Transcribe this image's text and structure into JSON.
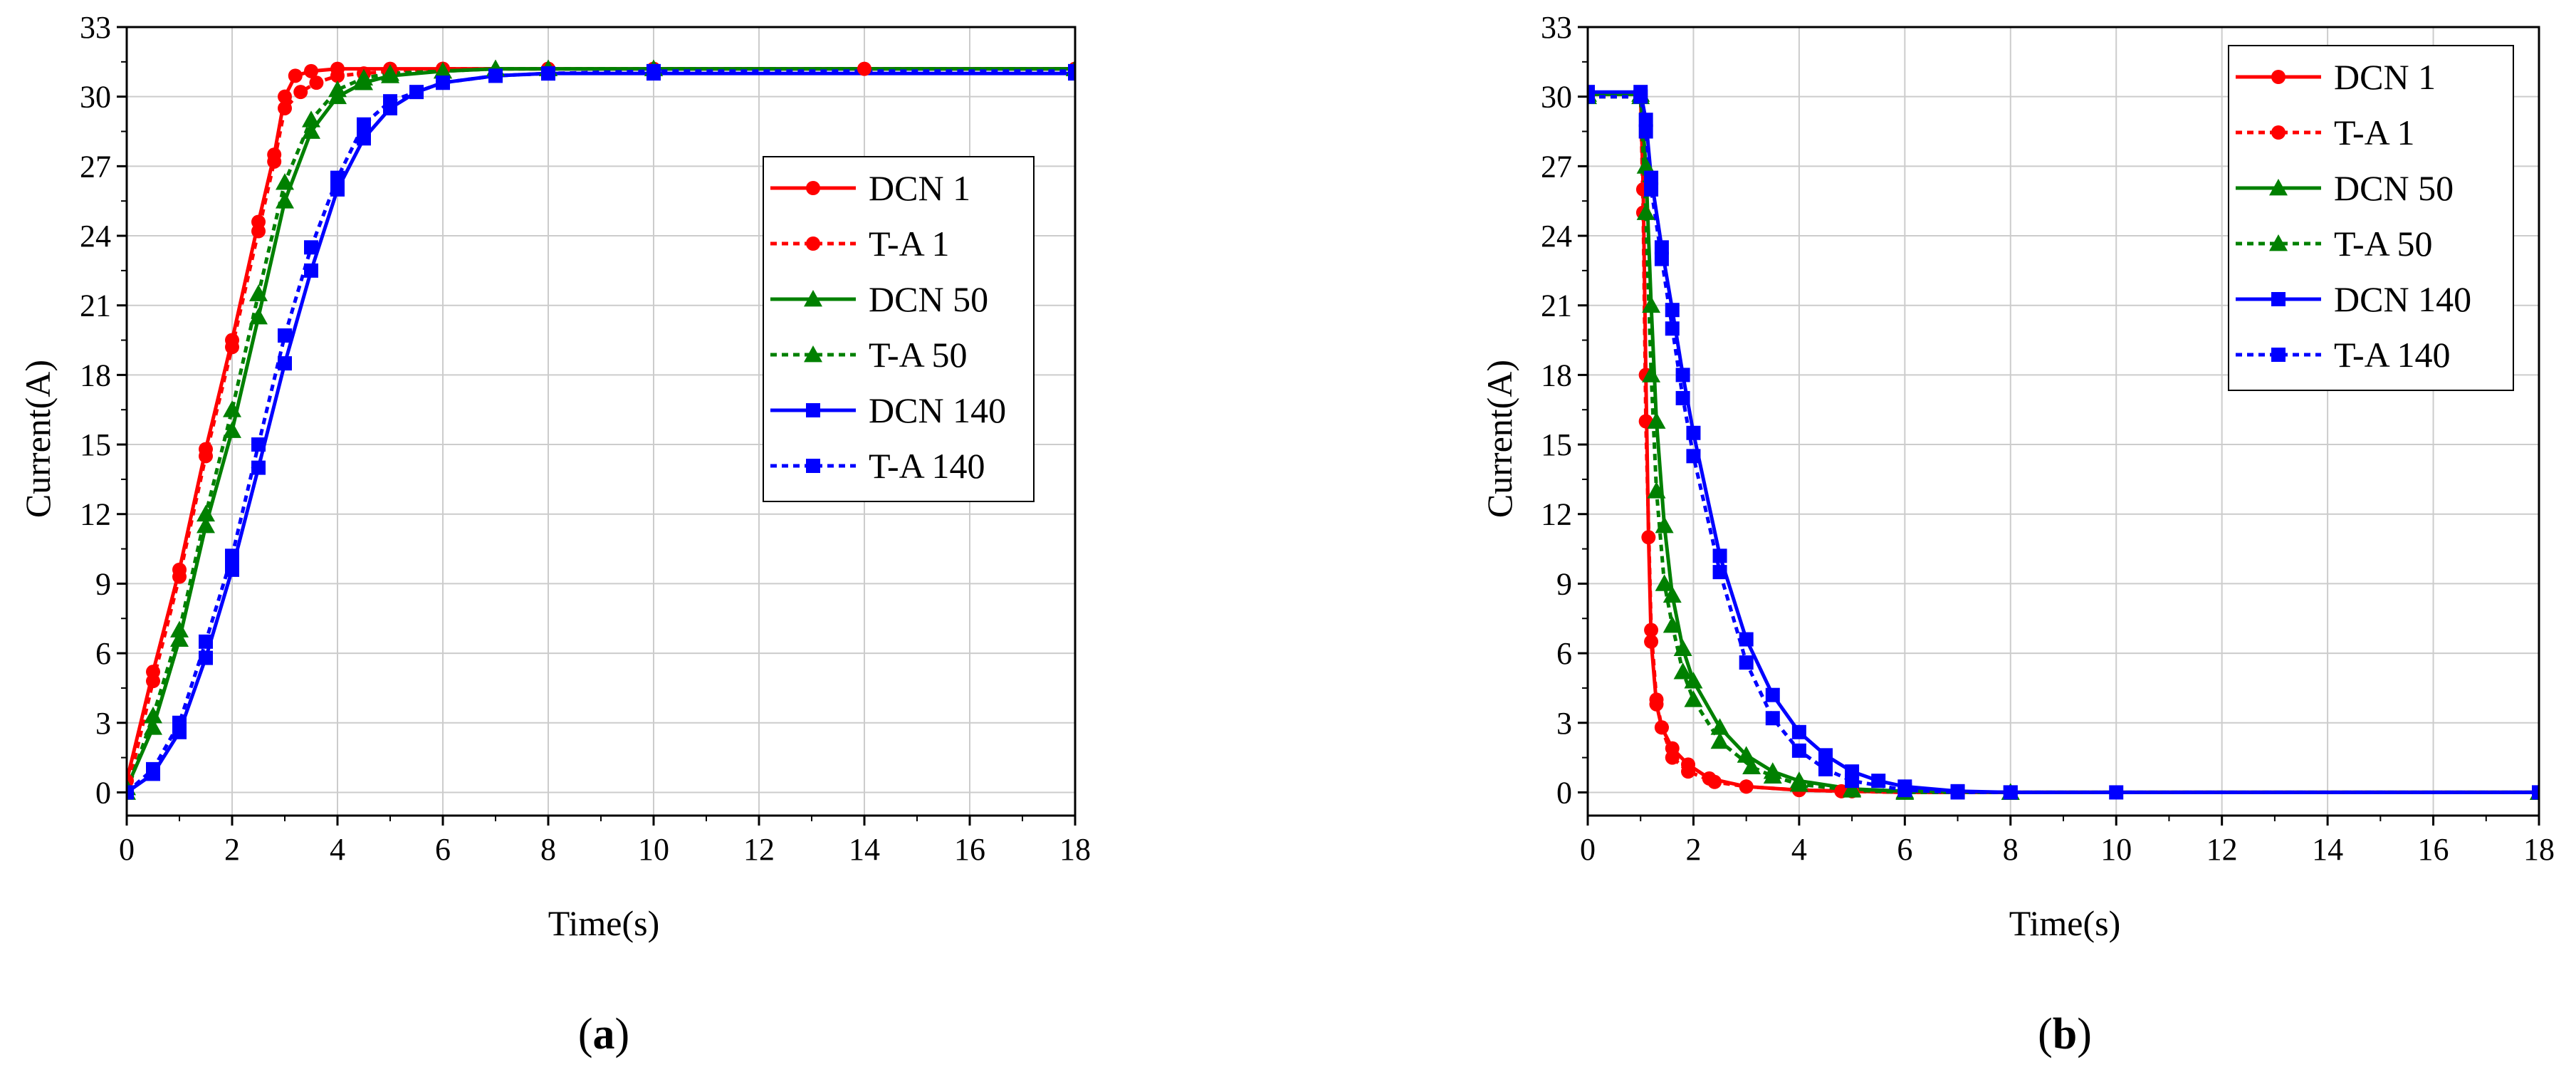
{
  "figure_labels": [
    {
      "open": "(",
      "letter": "a",
      "close": ")"
    },
    {
      "open": "(",
      "letter": "b",
      "close": ")"
    }
  ],
  "colors": {
    "red": "#ff0000",
    "green": "#008000",
    "blue": "#0000ff",
    "grid": "#cccccc",
    "axis": "#000000"
  },
  "chart_data": [
    {
      "type": "line",
      "title": "",
      "xlabel": "Time(s)",
      "ylabel": "Current(A)",
      "xlim": [
        0,
        18
      ],
      "ylim": [
        -1,
        33
      ],
      "xticks": [
        0,
        2,
        4,
        6,
        8,
        10,
        12,
        14,
        16,
        18
      ],
      "yticks": [
        0,
        3,
        6,
        9,
        12,
        15,
        18,
        21,
        24,
        27,
        30,
        33
      ],
      "grid": true,
      "legend_position": "right",
      "series": [
        {
          "name": "DCN 1",
          "color": "#ff0000",
          "dash": "solid",
          "marker": "circle",
          "x": [
            0,
            0.5,
            1,
            1.5,
            2,
            2.5,
            2.8,
            3.0,
            3.2,
            3.5,
            4,
            5,
            6,
            8,
            10,
            14,
            18
          ],
          "y": [
            0.5,
            5.2,
            9.6,
            14.8,
            19.5,
            24.6,
            27.5,
            30.0,
            30.9,
            31.1,
            31.2,
            31.2,
            31.2,
            31.2,
            31.2,
            31.2,
            31.2
          ]
        },
        {
          "name": "T-A 1",
          "color": "#ff0000",
          "dash": "dotted",
          "marker": "circle",
          "x": [
            0,
            0.5,
            1,
            1.5,
            2,
            2.5,
            2.8,
            3.0,
            3.3,
            3.6,
            4,
            4.5,
            5,
            6,
            8,
            18
          ],
          "y": [
            0.0,
            4.8,
            9.3,
            14.5,
            19.2,
            24.2,
            27.2,
            29.5,
            30.2,
            30.6,
            30.9,
            31.0,
            31.1,
            31.2,
            31.2,
            31.2
          ]
        },
        {
          "name": "DCN 50",
          "color": "#008000",
          "dash": "solid",
          "marker": "triangle",
          "x": [
            0,
            0.5,
            1,
            1.5,
            2,
            2.5,
            3,
            3.5,
            4,
            4.5,
            5,
            6,
            7,
            8,
            10,
            18
          ],
          "y": [
            0.2,
            2.8,
            6.6,
            11.5,
            15.6,
            20.5,
            25.5,
            28.5,
            30.0,
            30.6,
            30.9,
            31.1,
            31.2,
            31.2,
            31.2,
            31.2
          ]
        },
        {
          "name": "T-A 50",
          "color": "#008000",
          "dash": "dotted",
          "marker": "triangle",
          "x": [
            0,
            0.5,
            1,
            1.5,
            2,
            2.5,
            3,
            3.5,
            4,
            4.5,
            5,
            6,
            7,
            8,
            10,
            18
          ],
          "y": [
            0.0,
            3.3,
            7.0,
            12.0,
            16.5,
            21.5,
            26.3,
            29.0,
            30.3,
            30.8,
            31.0,
            31.1,
            31.2,
            31.2,
            31.2,
            31.2
          ]
        },
        {
          "name": "DCN 140",
          "color": "#0000ff",
          "dash": "solid",
          "marker": "square",
          "x": [
            0,
            0.5,
            1,
            1.5,
            2,
            2.5,
            3,
            3.5,
            4,
            4.5,
            5,
            5.5,
            6,
            7,
            8,
            10,
            18
          ],
          "y": [
            0.0,
            0.8,
            2.6,
            5.8,
            9.6,
            14.0,
            18.5,
            22.5,
            26.0,
            28.2,
            29.5,
            30.2,
            30.6,
            30.9,
            31.0,
            31.0,
            31.0
          ]
        },
        {
          "name": "T-A 140",
          "color": "#0000ff",
          "dash": "dotted",
          "marker": "square",
          "x": [
            0,
            0.5,
            1,
            1.5,
            2,
            2.5,
            3,
            3.5,
            4,
            4.5,
            5,
            6,
            7,
            8,
            10,
            18
          ],
          "y": [
            0.0,
            1.0,
            3.0,
            6.5,
            10.2,
            15.0,
            19.7,
            23.5,
            26.5,
            28.8,
            29.8,
            30.6,
            30.9,
            31.0,
            31.1,
            31.1
          ]
        }
      ]
    },
    {
      "type": "line",
      "title": "",
      "xlabel": "Time(s)",
      "ylabel": "Current(A)",
      "xlim": [
        0,
        18
      ],
      "ylim": [
        -1,
        33
      ],
      "xticks": [
        0,
        2,
        4,
        6,
        8,
        10,
        12,
        14,
        16,
        18
      ],
      "yticks": [
        0,
        3,
        6,
        9,
        12,
        15,
        18,
        21,
        24,
        27,
        30,
        33
      ],
      "grid": true,
      "legend_position": "top-right",
      "series": [
        {
          "name": "DCN 1",
          "color": "#ff0000",
          "dash": "solid",
          "marker": "circle",
          "x": [
            0,
            1.0,
            1.05,
            1.1,
            1.15,
            1.2,
            1.3,
            1.4,
            1.6,
            1.9,
            2.3,
            3.0,
            4.0,
            5.0,
            6.0,
            8.0,
            18
          ],
          "y": [
            30.1,
            30.1,
            26.0,
            18.0,
            11.0,
            6.5,
            3.8,
            2.8,
            1.9,
            1.2,
            0.6,
            0.25,
            0.1,
            0.05,
            0.0,
            0.0,
            0.0
          ]
        },
        {
          "name": "T-A 1",
          "color": "#ff0000",
          "dash": "dotted",
          "marker": "circle",
          "x": [
            0,
            1.0,
            1.05,
            1.1,
            1.2,
            1.3,
            1.4,
            1.6,
            1.9,
            2.4,
            3.0,
            4.0,
            4.8,
            6.0,
            8.0,
            18
          ],
          "y": [
            30.0,
            30.0,
            25.0,
            16.0,
            7.0,
            4.0,
            2.8,
            1.5,
            0.9,
            0.45,
            0.25,
            0.1,
            0.05,
            0.0,
            0.0,
            0.0
          ]
        },
        {
          "name": "DCN 50",
          "color": "#008000",
          "dash": "solid",
          "marker": "triangle",
          "x": [
            0,
            1.0,
            1.1,
            1.2,
            1.3,
            1.45,
            1.6,
            1.8,
            2.0,
            2.5,
            3.0,
            3.5,
            4.0,
            5.0,
            6.0,
            8.0,
            18
          ],
          "y": [
            30.1,
            30.1,
            27.0,
            21.0,
            16.0,
            11.5,
            8.5,
            6.2,
            4.8,
            2.8,
            1.6,
            0.9,
            0.5,
            0.15,
            0.05,
            0.0,
            0.0
          ]
        },
        {
          "name": "T-A 50",
          "color": "#008000",
          "dash": "dotted",
          "marker": "triangle",
          "x": [
            0,
            1.0,
            1.1,
            1.2,
            1.3,
            1.45,
            1.6,
            1.8,
            2.0,
            2.5,
            3.1,
            3.5,
            4.0,
            5.0,
            6.0,
            8.0,
            18
          ],
          "y": [
            30.0,
            30.0,
            25.0,
            18.0,
            13.0,
            9.0,
            7.2,
            5.2,
            4.0,
            2.2,
            1.1,
            0.7,
            0.35,
            0.1,
            0.0,
            0.0,
            0.0
          ]
        },
        {
          "name": "DCN 140",
          "color": "#0000ff",
          "dash": "solid",
          "marker": "square",
          "x": [
            0,
            1.0,
            1.1,
            1.2,
            1.4,
            1.6,
            1.8,
            2.0,
            2.5,
            3.0,
            3.5,
            4.0,
            4.5,
            5.0,
            5.5,
            6.0,
            7.0,
            8.0,
            10,
            18
          ],
          "y": [
            30.2,
            30.2,
            29.0,
            26.5,
            23.5,
            20.8,
            18.0,
            15.5,
            10.2,
            6.6,
            4.2,
            2.6,
            1.6,
            0.9,
            0.5,
            0.25,
            0.05,
            0.0,
            0.0,
            0.0
          ]
        },
        {
          "name": "T-A 140",
          "color": "#0000ff",
          "dash": "dotted",
          "marker": "square",
          "x": [
            0,
            1.0,
            1.1,
            1.2,
            1.4,
            1.6,
            1.8,
            2.0,
            2.5,
            3.0,
            3.5,
            4.0,
            4.5,
            5.0,
            6.0,
            7.0,
            8.0,
            18
          ],
          "y": [
            30.0,
            30.0,
            28.5,
            26.0,
            23.0,
            20.0,
            17.0,
            14.5,
            9.5,
            5.6,
            3.2,
            1.8,
            1.0,
            0.5,
            0.1,
            0.0,
            0.0,
            0.0
          ]
        }
      ]
    }
  ]
}
